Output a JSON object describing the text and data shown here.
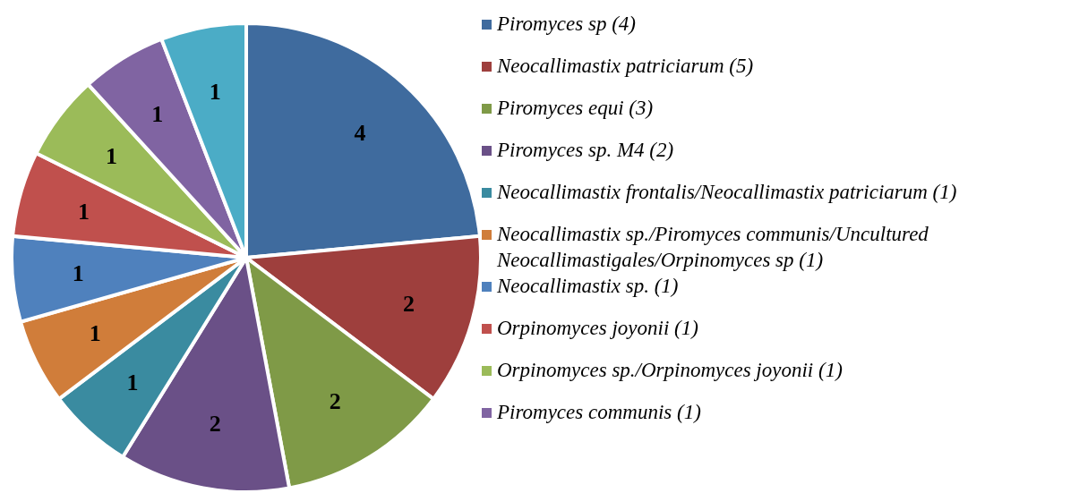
{
  "chart_data": {
    "type": "pie",
    "categories": [
      "Piromyces sp (4)",
      "Neocallimastix patriciarum (5)",
      "Piromyces equi (3)",
      "Piromyces sp. M4 (2)",
      "Neocallimastix frontalis/Neocallimastix patriciarum (1)",
      "Neocallimastix sp./Piromyces communis/Uncultured Neocallimastigales/Orpinomyces sp (1)",
      "Neocallimastix sp. (1)",
      "Orpinomyces joyonii (1)",
      "Orpinomyces sp./Orpinomyces joyonii (1)",
      "Piromyces communis (1)",
      null
    ],
    "values": [
      4,
      2,
      2,
      2,
      1,
      1,
      1,
      1,
      1,
      1,
      1
    ],
    "colors": [
      "#3f6b9e",
      "#9e3f3d",
      "#7f9a47",
      "#6a5087",
      "#3a8ba0",
      "#d07d3a",
      "#4f81bd",
      "#c0504d",
      "#9bbb59",
      "#8064a2",
      "#4bacc6"
    ],
    "data_labels": true,
    "legend": "right"
  }
}
